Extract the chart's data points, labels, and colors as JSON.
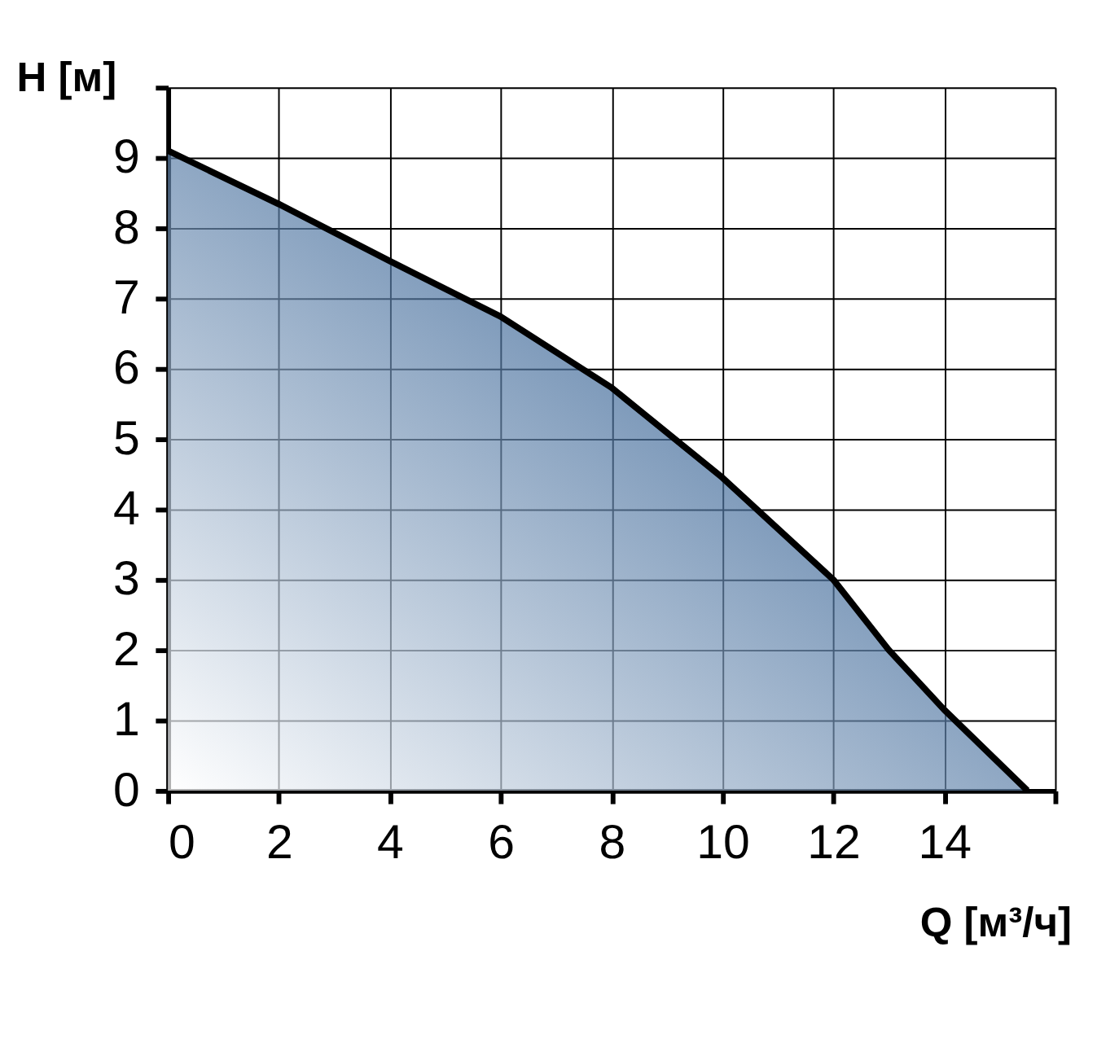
{
  "chart_data": {
    "type": "area",
    "xlabel": "Q [м³/ч]",
    "ylabel": "H [м]",
    "x": [
      0,
      2,
      4,
      6,
      8,
      10,
      12,
      13,
      14,
      15.5
    ],
    "series": [
      {
        "color": "#1f5088",
        "values": [
          9.1,
          8.34,
          7.53,
          6.74,
          5.73,
          4.45,
          3.0,
          2.0,
          1.15,
          0
        ]
      }
    ],
    "xlim": [
      0,
      16
    ],
    "xticks": [
      0,
      2,
      4,
      6,
      8,
      10,
      12,
      14,
      {
        "value": 16,
        "label": null
      }
    ],
    "ylim": [
      0,
      10
    ],
    "yticks": [
      0,
      1,
      2,
      3,
      4,
      5,
      6,
      7,
      8,
      9,
      {
        "value": 10,
        "label": null
      }
    ],
    "grid": true
  }
}
